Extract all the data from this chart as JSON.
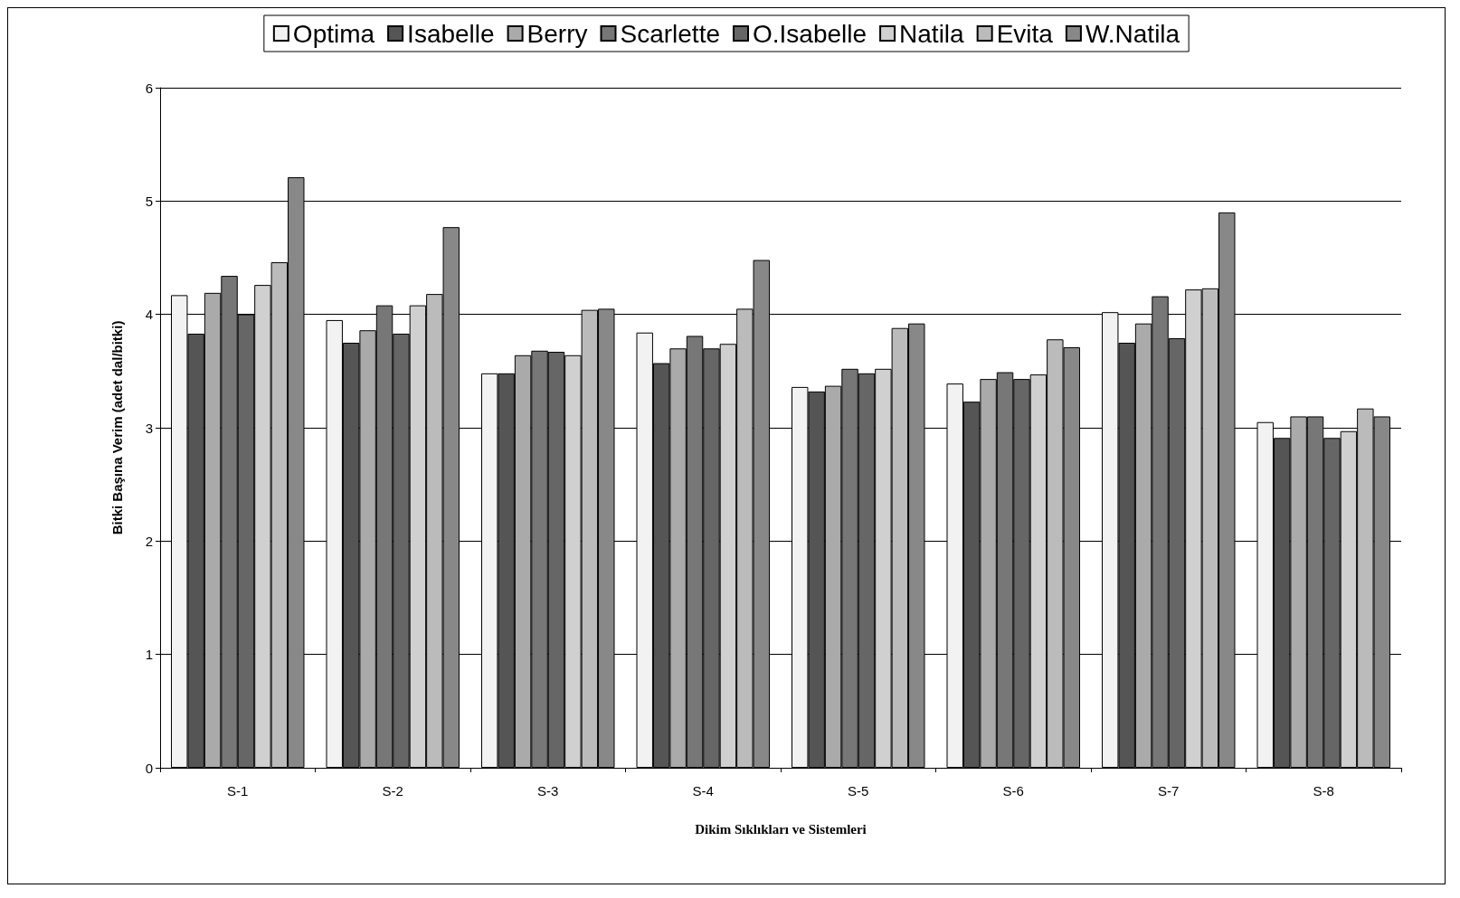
{
  "chart_data": {
    "type": "bar",
    "xlabel": "Dikim Sıklıkları ve Sistemleri",
    "ylabel": "Bitki Başına Verim (adet dal/bitki)",
    "categories": [
      "S-1",
      "S-2",
      "S-3",
      "S-4",
      "S-5",
      "S-6",
      "S-7",
      "S-8"
    ],
    "series": [
      {
        "name": "Optima",
        "color": "#f2f2f2",
        "values": [
          4.17,
          3.95,
          3.48,
          3.84,
          3.36,
          3.39,
          4.02,
          3.05
        ]
      },
      {
        "name": "Isabelle",
        "color": "#555555",
        "values": [
          3.83,
          3.75,
          3.48,
          3.57,
          3.32,
          3.23,
          3.75,
          2.91
        ]
      },
      {
        "name": "Berry",
        "color": "#aaaaaa",
        "values": [
          4.19,
          3.86,
          3.64,
          3.7,
          3.37,
          3.43,
          3.92,
          3.1
        ]
      },
      {
        "name": "Scarlette",
        "color": "#777777",
        "values": [
          4.34,
          4.08,
          3.68,
          3.81,
          3.52,
          3.49,
          4.16,
          3.1
        ]
      },
      {
        "name": "O.Isabelle",
        "color": "#666666",
        "values": [
          4.0,
          3.83,
          3.67,
          3.7,
          3.48,
          3.43,
          3.79,
          2.91
        ]
      },
      {
        "name": "Natila",
        "color": "#d0d0d0",
        "values": [
          4.26,
          4.08,
          3.64,
          3.74,
          3.52,
          3.47,
          4.22,
          2.97
        ]
      },
      {
        "name": "Evita",
        "color": "#bbbbbb",
        "values": [
          4.46,
          4.18,
          4.04,
          4.05,
          3.88,
          3.78,
          4.23,
          3.17
        ]
      },
      {
        "name": "W.Natila",
        "color": "#888888",
        "values": [
          5.21,
          4.77,
          4.05,
          4.48,
          3.92,
          3.71,
          4.9,
          3.1
        ]
      }
    ],
    "ylim": [
      0,
      6
    ],
    "yticks": [
      0,
      1,
      2,
      3,
      4,
      5,
      6
    ],
    "grid": "y",
    "legend": "top"
  }
}
